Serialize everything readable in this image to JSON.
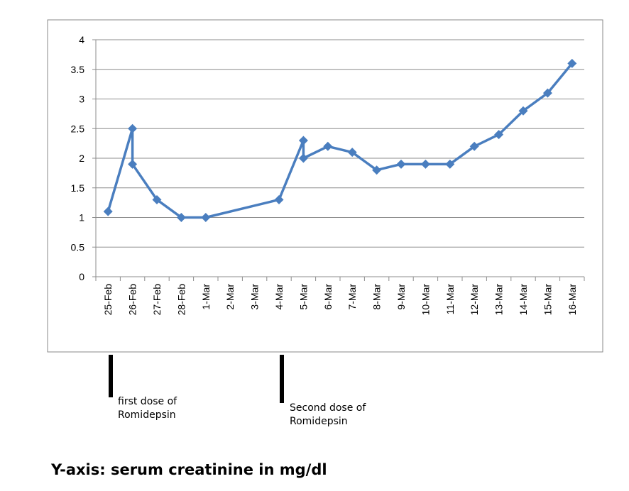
{
  "chart_data": {
    "type": "line",
    "categories": [
      "25-Feb",
      "26-Feb",
      "27-Feb",
      "28-Feb",
      "1-Mar",
      "2-Mar",
      "3-Mar",
      "4-Mar",
      "5-Mar",
      "6-Mar",
      "7-Mar",
      "8-Mar",
      "9-Mar",
      "10-Mar",
      "11-Mar",
      "12-Mar",
      "13-Mar",
      "14-Mar",
      "15-Mar",
      "16-Mar"
    ],
    "points": [
      {
        "x": "25-Feb",
        "y": 1.1
      },
      {
        "x": "26-Feb",
        "y": 2.5
      },
      {
        "x": "26-Feb",
        "y": 1.9
      },
      {
        "x": "27-Feb",
        "y": 1.3
      },
      {
        "x": "28-Feb",
        "y": 1.0
      },
      {
        "x": "1-Mar",
        "y": 1.0
      },
      {
        "x": "4-Mar",
        "y": 1.3
      },
      {
        "x": "5-Mar",
        "y": 2.3
      },
      {
        "x": "5-Mar",
        "y": 2.0
      },
      {
        "x": "6-Mar",
        "y": 2.2
      },
      {
        "x": "7-Mar",
        "y": 2.1
      },
      {
        "x": "8-Mar",
        "y": 1.8
      },
      {
        "x": "9-Mar",
        "y": 1.9
      },
      {
        "x": "10-Mar",
        "y": 1.9
      },
      {
        "x": "11-Mar",
        "y": 1.9
      },
      {
        "x": "12-Mar",
        "y": 2.2
      },
      {
        "x": "13-Mar",
        "y": 2.4
      },
      {
        "x": "14-Mar",
        "y": 2.8
      },
      {
        "x": "15-Mar",
        "y": 3.1
      },
      {
        "x": "16-Mar",
        "y": 3.6
      }
    ],
    "ylim": [
      0,
      4
    ],
    "yticks": [
      "0",
      "0.5",
      "1",
      "1.5",
      "2",
      "2.5",
      "3",
      "3.5",
      "4"
    ],
    "grid": true,
    "series_color": "#4a7ebf",
    "title": "",
    "xlabel": "",
    "ylabel": ""
  },
  "annotations": {
    "first_dose": "first dose of\nRomidepsin",
    "second_dose": "Second dose of\nRomidepsin"
  },
  "footer": {
    "y_axis_note": "Y-axis: serum creatinine in mg/dl"
  }
}
